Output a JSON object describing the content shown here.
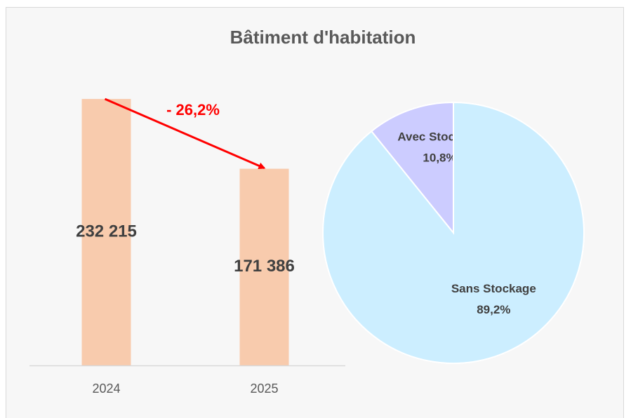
{
  "chart_data": [
    {
      "type": "bar",
      "title": "Bâtiment d'habitation",
      "categories": [
        "2024",
        "2025"
      ],
      "values": [
        232215,
        171386
      ],
      "value_labels": [
        "232 215",
        "171 386"
      ],
      "color": "#f8cbad",
      "ylim": [
        0,
        250000
      ],
      "annotation": "- 26,2%",
      "annotation_color": "#ff0000"
    },
    {
      "type": "pie",
      "categories": [
        "Avec Stockage",
        "Sans Stockage"
      ],
      "values": [
        10.8,
        89.2
      ],
      "value_labels": [
        "10,8%",
        "89,2%"
      ],
      "colors": [
        "#ccccff",
        "#cceeff"
      ]
    }
  ]
}
